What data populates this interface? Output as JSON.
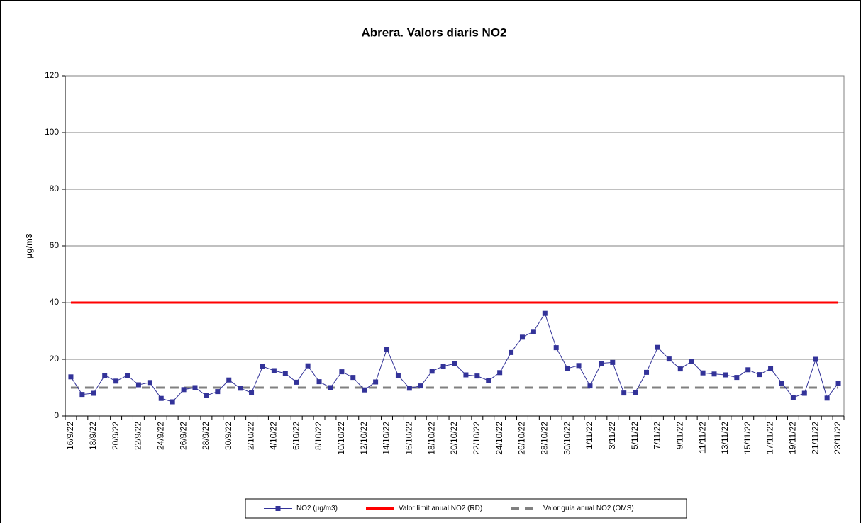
{
  "chart_data": {
    "type": "line",
    "title": "Abrera. Valors diaris NO2",
    "y_label": "µg/m3",
    "categories": [
      "16/9/22",
      null,
      "18/9/22",
      null,
      "20/9/22",
      null,
      "22/9/22",
      null,
      "24/9/22",
      null,
      "26/9/22",
      null,
      "28/9/22",
      null,
      "30/9/22",
      null,
      "2/10/22",
      null,
      "4/10/22",
      null,
      "6/10/22",
      null,
      "8/10/22",
      null,
      "10/10/22",
      null,
      "12/10/22",
      null,
      "14/10/22",
      null,
      "16/10/22",
      null,
      "18/10/22",
      null,
      "20/10/22",
      null,
      "22/10/22",
      null,
      "24/10/22",
      null,
      "26/10/22",
      null,
      "28/10/22",
      null,
      "30/10/22",
      null,
      "1/11/22",
      null,
      "3/11/22",
      null,
      "5/11/22",
      null,
      "7/11/22",
      null,
      "9/11/22",
      null,
      "11/11/22",
      null,
      "13/11/22",
      null,
      "15/11/22",
      null,
      "17/11/22",
      null,
      "19/11/22",
      null,
      "21/11/22",
      null,
      "23/11/22"
    ],
    "series": [
      {
        "name": "NO2 (µg/m3)",
        "color": "#333399",
        "marker": "square",
        "dash": false,
        "values": [
          13.8,
          7.6,
          8.0,
          14.3,
          12.3,
          14.3,
          11.0,
          11.8,
          6.2,
          5.0,
          9.3,
          10.0,
          7.2,
          8.6,
          12.7,
          9.8,
          8.2,
          17.5,
          16.0,
          15.0,
          11.9,
          17.7,
          12.1,
          10.0,
          15.6,
          13.6,
          9.2,
          12.0,
          23.6,
          14.3,
          9.8,
          10.6,
          15.8,
          17.6,
          18.4,
          14.5,
          14.1,
          12.5,
          15.3,
          22.4,
          27.8,
          29.8,
          36.2,
          24.1,
          16.8,
          17.8,
          10.6,
          18.6,
          18.9,
          8.1,
          8.3,
          15.4,
          24.2,
          20.1,
          16.6,
          19.3,
          15.2,
          14.8,
          14.5,
          13.6,
          16.3,
          14.6,
          16.7,
          11.6,
          6.5,
          8.0,
          20.0,
          6.3,
          11.6
        ]
      },
      {
        "name": "Valor límit anual NO2 (RD)",
        "color": "#ff0000",
        "marker": null,
        "dash": false,
        "values": [
          40,
          40,
          40,
          40,
          40,
          40,
          40,
          40,
          40,
          40,
          40,
          40,
          40,
          40,
          40,
          40,
          40,
          40,
          40,
          40,
          40,
          40,
          40,
          40,
          40,
          40,
          40,
          40,
          40,
          40,
          40,
          40,
          40,
          40,
          40,
          40,
          40,
          40,
          40,
          40,
          40,
          40,
          40,
          40,
          40,
          40,
          40,
          40,
          40,
          40,
          40,
          40,
          40,
          40,
          40,
          40,
          40,
          40,
          40,
          40,
          40,
          40,
          40,
          40,
          40,
          40,
          40,
          40,
          40
        ]
      },
      {
        "name": "Valor guía anual NO2 (OMS)",
        "color": "#808080",
        "marker": null,
        "dash": true,
        "values": [
          10,
          10,
          10,
          10,
          10,
          10,
          10,
          10,
          10,
          10,
          10,
          10,
          10,
          10,
          10,
          10,
          10,
          10,
          10,
          10,
          10,
          10,
          10,
          10,
          10,
          10,
          10,
          10,
          10,
          10,
          10,
          10,
          10,
          10,
          10,
          10,
          10,
          10,
          10,
          10,
          10,
          10,
          10,
          10,
          10,
          10,
          10,
          10,
          10,
          10,
          10,
          10,
          10,
          10,
          10,
          10,
          10,
          10,
          10,
          10,
          10,
          10,
          10,
          10,
          10,
          10,
          10,
          10,
          10
        ]
      }
    ],
    "ylim": [
      0,
      120
    ],
    "yticks": [
      0,
      20,
      40,
      60,
      80,
      100,
      120
    ],
    "grid": true,
    "legend": "bottom"
  }
}
